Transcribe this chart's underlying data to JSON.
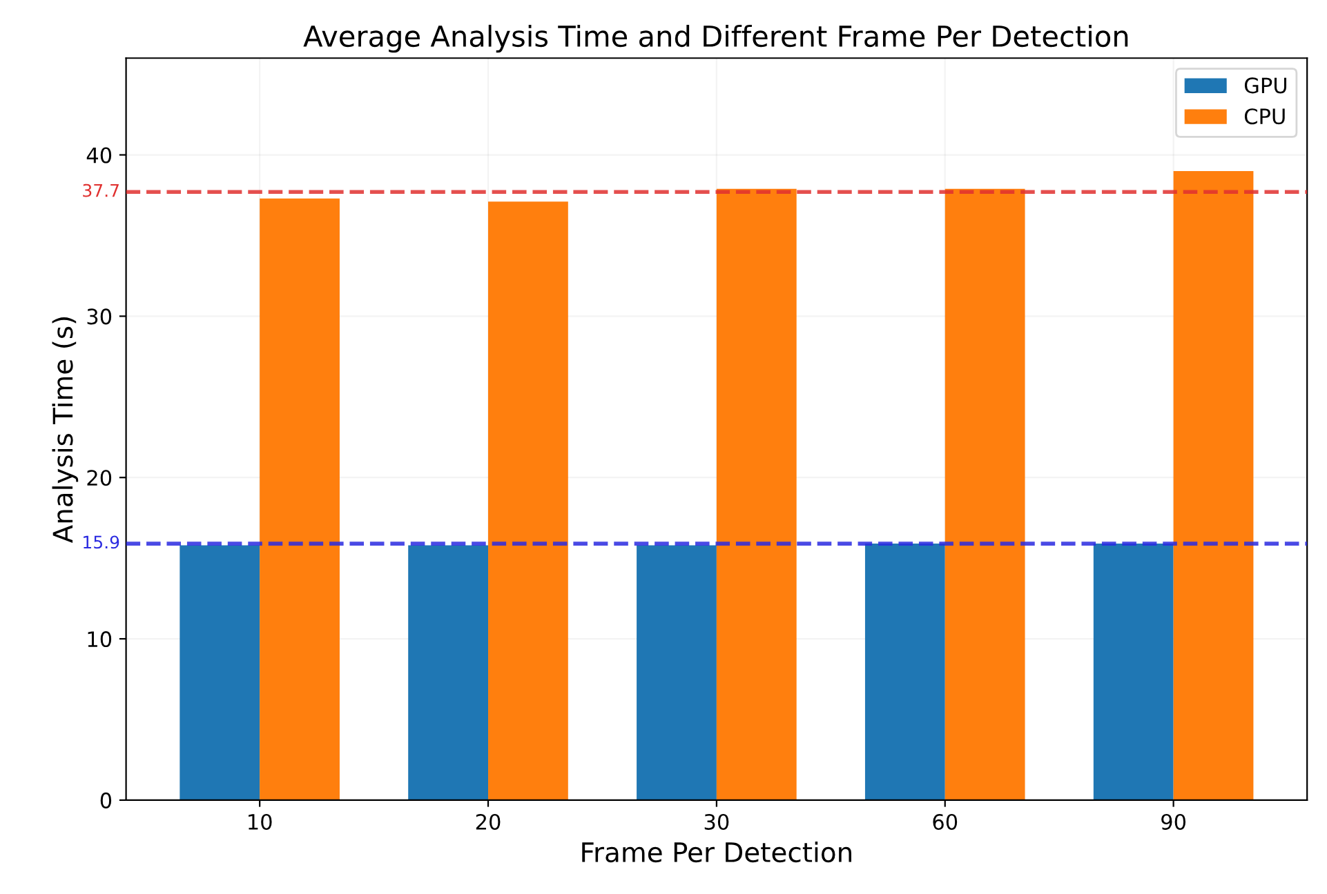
{
  "chart_data": {
    "type": "bar",
    "title": "Average Analysis Time and Different Frame Per Detection",
    "xlabel": "Frame Per Detection",
    "ylabel": "Analysis Time (s)",
    "categories": [
      "10",
      "20",
      "30",
      "60",
      "90"
    ],
    "series": [
      {
        "name": "GPU",
        "color": "#1f77b4",
        "values": [
          15.8,
          15.8,
          15.8,
          15.9,
          15.9
        ]
      },
      {
        "name": "CPU",
        "color": "#ff7f0e",
        "values": [
          37.3,
          37.1,
          37.9,
          37.9,
          39.0
        ]
      }
    ],
    "ylim": [
      0,
      46
    ],
    "yticks": [
      0,
      10,
      20,
      30,
      40
    ],
    "ref_lines": [
      {
        "axis": "y",
        "value": 37.7,
        "label": "37.7",
        "color": "#e0302f",
        "line_style": "dashed"
      },
      {
        "axis": "y",
        "value": 15.9,
        "label": "15.9",
        "color": "#2a2ae0",
        "line_style": "dashed"
      }
    ],
    "grid": true,
    "legend": "top right"
  }
}
